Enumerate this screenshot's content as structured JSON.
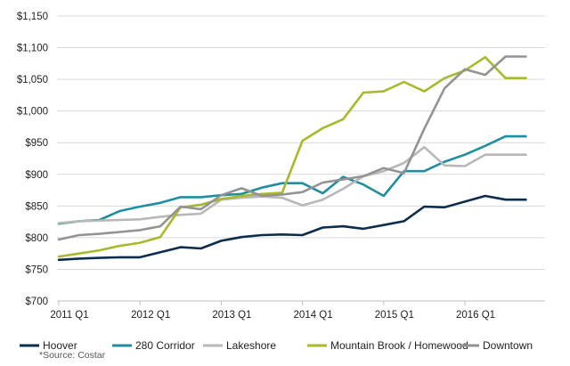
{
  "chart_data": {
    "type": "line",
    "title": "",
    "xlabel": "",
    "ylabel": "",
    "ylim": [
      700,
      1150
    ],
    "y_ticks": [
      700,
      750,
      800,
      850,
      900,
      950,
      1000,
      1050,
      1100,
      1150
    ],
    "y_tick_labels": [
      "$700",
      "$750",
      "$800",
      "$850",
      "$900",
      "$950",
      "$1,000",
      "$1,050",
      "$1,100",
      "$1,150"
    ],
    "x_ticks": [
      {
        "at": 0,
        "label": "2011 Q1"
      },
      {
        "at": 4,
        "label": "2012 Q1"
      },
      {
        "at": 8,
        "label": "2013 Q1"
      },
      {
        "at": 12,
        "label": "2014 Q1"
      },
      {
        "at": 16,
        "label": "2015 Q1"
      },
      {
        "at": 20,
        "label": "2016 Q1"
      }
    ],
    "x_count": 24,
    "grid": true,
    "legend_position": "bottom",
    "series": [
      {
        "name": "Hoover",
        "color": "#0d2d4c",
        "values": [
          765,
          767,
          768,
          769,
          769,
          777,
          785,
          783,
          795,
          801,
          804,
          805,
          804,
          816,
          818,
          814,
          820,
          826,
          849,
          848,
          857,
          866,
          860,
          860
        ]
      },
      {
        "name": "280 Corridor",
        "color": "#1f8ea0",
        "values": [
          822,
          826,
          828,
          842,
          849,
          855,
          864,
          864,
          867,
          869,
          879,
          886,
          886,
          870,
          896,
          884,
          866,
          905,
          905,
          920,
          931,
          945,
          960,
          960
        ]
      },
      {
        "name": "Lakeshore",
        "color": "#b8b8b8",
        "values": [
          823,
          826,
          827,
          828,
          829,
          833,
          836,
          838,
          860,
          863,
          865,
          863,
          851,
          860,
          877,
          897,
          905,
          918,
          943,
          914,
          913,
          931,
          931,
          931
        ]
      },
      {
        "name": "Mountain Brook / Homewood",
        "color": "#a9b92b",
        "values": [
          770,
          775,
          780,
          787,
          792,
          801,
          848,
          852,
          861,
          866,
          869,
          871,
          953,
          973,
          987,
          1029,
          1031,
          1046,
          1031,
          1052,
          1064,
          1085,
          1052,
          1052
        ]
      },
      {
        "name": "Downtown",
        "color": "#939393",
        "values": [
          797,
          804,
          806,
          809,
          812,
          818,
          849,
          845,
          867,
          878,
          866,
          868,
          872,
          887,
          892,
          897,
          910,
          902,
          972,
          1036,
          1066,
          1057,
          1086,
          1086
        ]
      }
    ]
  },
  "source": "*Source: Costar"
}
